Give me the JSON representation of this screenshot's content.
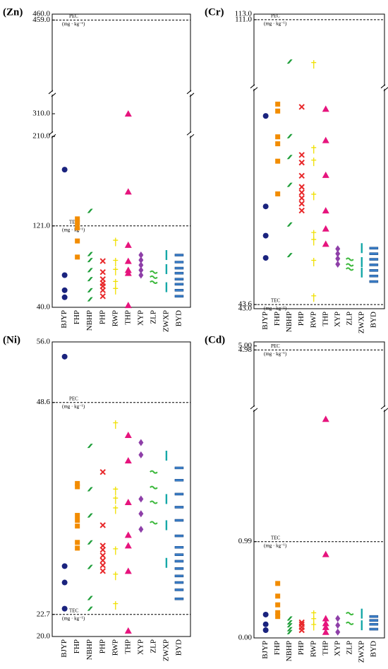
{
  "chart_data": [
    {
      "type": "scatter",
      "title": "(Zn)",
      "categories": [
        "BJYP",
        "FHP",
        "NBHP",
        "PHP",
        "RWP",
        "THP",
        "XYP",
        "ZLP",
        "ZWXP",
        "BYD"
      ],
      "colors": [
        "#1a237e",
        "#f28c00",
        "#1e9e3a",
        "#e8282a",
        "#f0e000",
        "#e6147d",
        "#8e3fa8",
        "#3cb83c",
        "#17a8a8",
        "#3a7ec8"
      ],
      "markers": [
        "circle",
        "square",
        "slash",
        "cross",
        "dagger",
        "triangle",
        "diamond",
        "wave",
        "vbar",
        "hbar"
      ],
      "ysegments": [
        [
          40,
          210
        ],
        [
          290,
          330
        ],
        [
          447,
          460
        ]
      ],
      "yticks": [
        {
          "value": 40,
          "label": "40.0"
        },
        {
          "value": 121,
          "label": "121.0"
        },
        {
          "value": 210,
          "label": "210.0"
        },
        {
          "value": 310,
          "label": "310.0"
        },
        {
          "value": 459,
          "label": "459.0"
        },
        {
          "value": 460,
          "label": "460.0"
        }
      ],
      "reference_lines": [
        {
          "value": 459,
          "label": "PEC",
          "unit": "(mg · kg⁻¹)"
        },
        {
          "value": 121,
          "label": "TEC",
          "unit": "(mg · kg⁻¹)"
        }
      ],
      "values": [
        [
          177,
          72,
          57,
          50
        ],
        [
          128,
          124,
          119,
          106,
          90
        ],
        [
          136,
          93,
          87,
          77,
          68,
          57,
          48
        ],
        [
          86,
          75,
          68,
          64,
          61,
          57,
          51
        ],
        [
          105,
          85,
          76,
          64,
          57
        ],
        [
          310,
          155,
          102,
          86,
          77,
          74,
          42
        ],
        [
          92,
          87,
          82,
          77,
          72
        ],
        [
          75,
          70,
          65
        ],
        [
          92,
          78,
          60
        ],
        [
          92,
          85,
          79,
          74,
          68,
          63,
          57,
          51
        ]
      ]
    },
    {
      "type": "scatter",
      "title": "(Cr)",
      "categories": [
        "BJYP",
        "FHP",
        "NBHP",
        "PHP",
        "RWP",
        "THP",
        "XYP",
        "ZLP",
        "ZWXP",
        "BYD"
      ],
      "colors": [
        "#1a237e",
        "#f28c00",
        "#1e9e3a",
        "#e8282a",
        "#f0e000",
        "#e6147d",
        "#8e3fa8",
        "#3cb83c",
        "#17a8a8",
        "#3a7ec8"
      ],
      "markers": [
        "circle",
        "square",
        "slash",
        "cross",
        "dagger",
        "triangle",
        "diamond",
        "wave",
        "vbar",
        "hbar"
      ],
      "ysegments": [
        [
          43,
          74.5
        ],
        [
          87.5,
          113
        ]
      ],
      "yticks": [
        {
          "value": 43,
          "label": "43.0"
        },
        43.6,
        {
          "value": 111,
          "label": "111.0"
        },
        {
          "value": 113,
          "label": "113.0"
        }
      ],
      "reference_lines": [
        {
          "value": 111,
          "label": "PEC",
          "unit": "(mg · kg⁻¹)"
        },
        {
          "value": 43.6,
          "label": "TEC",
          "unit": "(mg · kg⁻¹)"
        }
      ],
      "values": [
        [
          70.7,
          57.7,
          53.5,
          50.3
        ],
        [
          72.4,
          71.4,
          67.7,
          66.7,
          64.2,
          59.5
        ],
        [
          96,
          67.8,
          64.8,
          60.8,
          55.1,
          50.7
        ],
        [
          72,
          65.1,
          64,
          62.1,
          60.5,
          59.7,
          58.9,
          58.1,
          57.1
        ],
        [
          95,
          65.9,
          64.1,
          59.2,
          53.7,
          52.7,
          49.7,
          44.6
        ],
        [
          71.7,
          67.2,
          62.2,
          57.1,
          54.5,
          52.3
        ],
        [
          51.6,
          50.9,
          50.2,
          49.4
        ],
        [
          50.1,
          49.3,
          48.7
        ],
        [
          51.7,
          49.7,
          48.2
        ],
        [
          51.7,
          50.9,
          50.1,
          49.3,
          48.5,
          47.7,
          46.9
        ]
      ]
    },
    {
      "type": "scatter",
      "title": "(Ni)",
      "categories": [
        "BJYP",
        "FHP",
        "NBHP",
        "PHP",
        "RWP",
        "THP",
        "XYP",
        "ZLP",
        "ZWXP",
        "BYD"
      ],
      "colors": [
        "#1a237e",
        "#f28c00",
        "#1e9e3a",
        "#e8282a",
        "#f0e000",
        "#e6147d",
        "#8e3fa8",
        "#3cb83c",
        "#17a8a8",
        "#3a7ec8"
      ],
      "markers": [
        "circle",
        "square",
        "slash",
        "cross",
        "dagger",
        "triangle",
        "diamond",
        "wave",
        "vbar",
        "hbar"
      ],
      "ysegments": [
        [
          20,
          56
        ]
      ],
      "yticks": [
        {
          "value": 20,
          "label": "20.0"
        },
        22.7,
        48.6,
        {
          "value": 56,
          "label": "56.0"
        }
      ],
      "reference_lines": [
        {
          "value": 48.6,
          "label": "PEC",
          "unit": "(mg · kg⁻¹)"
        },
        {
          "value": 22.7,
          "label": "TEC",
          "unit": "(mg · kg⁻¹)"
        }
      ],
      "values": [
        [
          54.2,
          28.6,
          26.6,
          23.4
        ],
        [
          38.7,
          38.3,
          34.8,
          34.2,
          33.5,
          31.5,
          30.8
        ],
        [
          43.3,
          38,
          34.8,
          31.5,
          28.5,
          24.7,
          23.4
        ],
        [
          40.1,
          33.6,
          31.1,
          30.6,
          29.9,
          29.3,
          28.7,
          28
        ],
        [
          45.9,
          37.8,
          36.7,
          35.5,
          30.5,
          27.4,
          23.8
        ],
        [
          44.6,
          41.5,
          36.4,
          32.4,
          31.1,
          28,
          20.7
        ],
        [
          43.7,
          42.2,
          36.8,
          35,
          33.1
        ],
        [
          40.1,
          38.2,
          36.4,
          33.9
        ],
        [
          42.1,
          36.8,
          33.6,
          29
        ],
        [
          40.6,
          39.1,
          37.4,
          35.8,
          34.2,
          32.3,
          30.9,
          30,
          29.2,
          28.3,
          27.4,
          26.6,
          25.7,
          24.6
        ]
      ]
    },
    {
      "type": "scatter",
      "title": "(Cd)",
      "categories": [
        "BJYP",
        "FHP",
        "NBHP",
        "PHP",
        "RWP",
        "THP",
        "XYP",
        "ZLP",
        "ZWXP",
        "BYD"
      ],
      "colors": [
        "#1a237e",
        "#f28c00",
        "#1e9e3a",
        "#e8282a",
        "#f0e000",
        "#e6147d",
        "#8e3fa8",
        "#3cb83c",
        "#17a8a8",
        "#3a7ec8"
      ],
      "markers": [
        "circle",
        "square",
        "slash",
        "cross",
        "dagger",
        "triangle",
        "diamond",
        "wave",
        "vbar",
        "hbar"
      ],
      "ysegments": [
        [
          0,
          2.34
        ],
        [
          4.7,
          5.02
        ]
      ],
      "yticks": [
        {
          "value": 0,
          "label": "0.00"
        },
        0.99,
        4.98,
        {
          "value": 5,
          "label": "5.00"
        }
      ],
      "reference_lines": [
        {
          "value": 4.98,
          "label": "PEC",
          "unit": "(mg · kg⁻¹)"
        },
        {
          "value": 0.99,
          "label": "TEC",
          "unit": "(mg · kg⁻¹)"
        }
      ],
      "values": [
        [
          0.24,
          0.14,
          0.08
        ],
        [
          0.56,
          0.43,
          0.34,
          0.26,
          0.22
        ],
        [
          0.2,
          0.16,
          0.13,
          0.09,
          0.06
        ],
        [
          0.16,
          0.14,
          0.11,
          0.08
        ],
        [
          0.24,
          0.18,
          0.12
        ],
        [
          2.25,
          0.86,
          0.2,
          0.15,
          0.11,
          0.06
        ],
        [
          0.2,
          0.13,
          0.06
        ],
        [
          0.25,
          0.15
        ],
        [
          0.25,
          0.13
        ],
        [
          0.22,
          0.18,
          0.14,
          0.09
        ]
      ]
    }
  ]
}
